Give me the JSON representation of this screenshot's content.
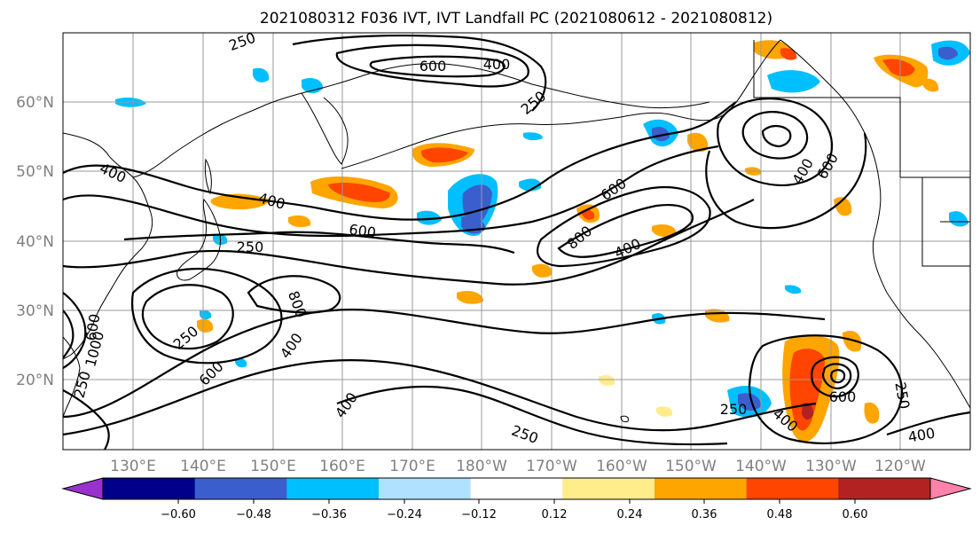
{
  "title": "2021080312 F036 IVT, IVT Landfall PC (2021080612 - 2021080812)",
  "map": {
    "lat_labels": [
      "60°N",
      "50°N",
      "40°N",
      "30°N",
      "20°N"
    ],
    "lon_labels": [
      "130°E",
      "140°E",
      "150°E",
      "160°E",
      "170°E",
      "180°W",
      "170°W",
      "160°W",
      "150°W",
      "140°W",
      "130°W",
      "120°W"
    ],
    "lon_range": [
      120,
      250
    ],
    "lat_range": [
      10,
      70
    ],
    "grid": true
  },
  "contour_labels": [
    "250",
    "600",
    "400",
    "250",
    "400",
    "400",
    "600",
    "250",
    "600",
    "800",
    "400",
    "400",
    "600",
    "600",
    "250",
    "800",
    "400",
    "600",
    "1000",
    "250",
    "400",
    "250",
    "600",
    "400",
    "250",
    "250",
    "400"
  ],
  "colorbar": {
    "ticks": [
      "−0.60",
      "−0.48",
      "−0.36",
      "−0.24",
      "−0.12",
      "0.12",
      "0.24",
      "0.36",
      "0.48",
      "0.60"
    ],
    "colors": [
      "#9932cc",
      "#00008b",
      "#3a5fcd",
      "#00bfff",
      "#b0e2ff",
      "#ffffff",
      "#ffec8b",
      "#ffa500",
      "#ff4500",
      "#b22222",
      "#ff82ab"
    ]
  }
}
